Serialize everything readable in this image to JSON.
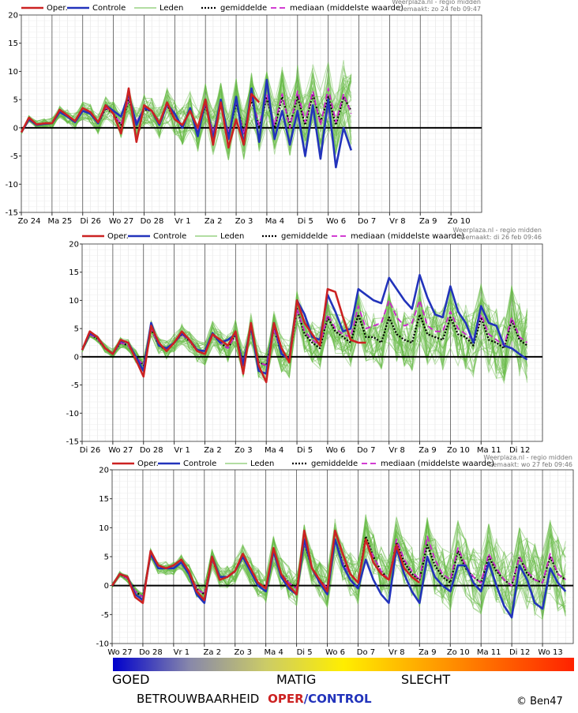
{
  "colors": {
    "oper": "#cc2222",
    "control": "#2233bb",
    "members": "#66bb44",
    "mean": "#000000",
    "median": "#cc22cc",
    "zero": "#000000"
  },
  "legend": {
    "oper": "Oper.",
    "control": "Controle",
    "members": "Leden",
    "mean": "gemiddelde",
    "median": "mediaan (middelste waarde)"
  },
  "chart_data": [
    {
      "type": "line",
      "credit_line1": "Weerplaza.nl - regio midden",
      "credit_line2": "Gemaakt: zo 24 feb 09:47",
      "ylim": [
        -15,
        20
      ],
      "yticks": [
        -15,
        -10,
        -5,
        0,
        5,
        10,
        15,
        20
      ],
      "x_start_day": 0,
      "day_labels": [
        "Zo 24",
        "Ma 25",
        "Di 26",
        "Wo 27",
        "Do 28",
        "Vr 1",
        "Za 2",
        "Zo 3",
        "Ma 4",
        "Di 5",
        "Wo 6",
        "Do 7",
        "Vr 8",
        "Za 9",
        "Zo 10"
      ],
      "grid": true,
      "series": [
        {
          "key": "oper",
          "values": [
            -0.8,
            1.8,
            0.6,
            0.8,
            0.8,
            3.2,
            2.2,
            1.2,
            3.5,
            2.8,
            1.0,
            4.0,
            2.5,
            -1.0,
            7.0,
            -2.5,
            4.0,
            3.0,
            0.8,
            4.5,
            1.5,
            0.5,
            3.0,
            0.0,
            5.0,
            -3.0,
            4.5,
            -3.5,
            1.5,
            -3.0,
            6.0,
            4.5
          ]
        },
        {
          "key": "control",
          "values": [
            -0.8,
            1.5,
            0.5,
            0.7,
            0.8,
            2.8,
            2.0,
            1.0,
            3.0,
            2.5,
            0.8,
            4.0,
            3.0,
            2.0,
            6.0,
            0.5,
            3.5,
            3.0,
            0.5,
            4.2,
            2.5,
            0.0,
            3.5,
            -1.5,
            5.0,
            -2.0,
            5.0,
            -2.0,
            5.5,
            -3.0,
            7.0,
            -2.5,
            8.5,
            -2.0,
            3.0,
            -3.0,
            3.0,
            -5.0,
            4.0,
            -5.5,
            5.0,
            -7.0,
            0.0,
            -4.0
          ]
        },
        {
          "key": "mean",
          "values": [
            -0.8,
            1.6,
            0.6,
            0.8,
            0.8,
            2.8,
            2.0,
            1.2,
            3.0,
            2.6,
            0.8,
            3.5,
            2.5,
            0.5,
            5.0,
            1.0,
            3.2,
            3.0,
            1.0,
            4.0,
            1.5,
            0.5,
            3.0,
            -0.5,
            4.0,
            -1.0,
            4.0,
            -1.5,
            4.5,
            -1.0,
            5.0,
            0.0,
            5.5,
            0.0,
            5.5,
            0.5,
            5.5,
            0.5,
            6.0,
            1.0,
            5.5,
            0.5,
            5.5,
            3.0
          ]
        },
        {
          "key": "median",
          "values": [
            -0.8,
            1.6,
            0.6,
            0.8,
            0.8,
            2.9,
            2.0,
            1.2,
            3.0,
            2.6,
            0.8,
            3.6,
            2.6,
            0.6,
            5.2,
            1.0,
            3.3,
            3.0,
            1.0,
            4.1,
            1.6,
            0.5,
            3.0,
            -0.4,
            4.2,
            -0.8,
            4.2,
            -1.0,
            4.8,
            -1.2,
            5.5,
            0.5,
            5.8,
            0.5,
            6.0,
            0.0,
            6.5,
            1.0,
            6.5,
            0.5,
            7.0,
            1.0,
            6.0,
            2.5
          ]
        }
      ]
    },
    {
      "type": "line",
      "credit_line1": "Weerplaza.nl - regio midden",
      "credit_line2": "Gemaakt: di 26 feb 09:46",
      "ylim": [
        -15,
        20
      ],
      "yticks": [
        -15,
        -10,
        -5,
        0,
        5,
        10,
        15,
        20
      ],
      "x_start_day": 2,
      "day_labels": [
        "Di 26",
        "Wo 27",
        "Do 28",
        "Vr 1",
        "Za 2",
        "Zo 3",
        "Ma 4",
        "Di 5",
        "Wo 6",
        "Do 7",
        "Vr 8",
        "Za 9",
        "Zo 10",
        "Ma 11",
        "Di 12"
      ],
      "grid": true,
      "series": [
        {
          "key": "oper",
          "values": [
            1.2,
            4.5,
            3.5,
            1.5,
            0.5,
            3.0,
            2.5,
            -0.5,
            -3.5,
            5.5,
            2.5,
            1.0,
            2.5,
            4.5,
            3.0,
            1.0,
            0.5,
            4.0,
            3.0,
            2.0,
            4.5,
            -3.0,
            6.0,
            -1.5,
            -4.5,
            6.0,
            1.5,
            -1.0,
            10.0,
            6.0,
            4.0,
            2.0,
            12.0,
            11.5,
            7.0,
            3.0,
            2.5,
            2.5
          ]
        },
        {
          "key": "control",
          "values": [
            1.2,
            4.2,
            3.5,
            1.5,
            0.5,
            2.8,
            2.5,
            0.0,
            -2.5,
            6.0,
            2.0,
            1.5,
            2.5,
            4.2,
            3.0,
            1.2,
            1.0,
            4.2,
            2.5,
            3.0,
            4.0,
            -1.5,
            5.5,
            -2.5,
            -3.0,
            6.0,
            0.5,
            -0.5,
            10.0,
            7.5,
            3.5,
            3.0,
            11.0,
            8.0,
            4.5,
            5.0,
            12.0,
            11.0,
            10.0,
            9.5,
            14.0,
            12.0,
            10.0,
            8.5,
            14.5,
            10.5,
            7.5,
            7.0,
            12.5,
            8.0,
            6.0,
            2.5,
            9.0,
            6.0,
            5.5,
            2.0,
            1.5,
            0.5,
            -0.5
          ]
        },
        {
          "key": "mean",
          "values": [
            1.2,
            4.0,
            3.2,
            1.5,
            0.5,
            2.5,
            2.0,
            0.0,
            -1.5,
            5.0,
            2.0,
            1.2,
            2.5,
            4.0,
            2.8,
            1.0,
            0.5,
            4.0,
            2.5,
            1.5,
            4.0,
            -1.0,
            5.0,
            -1.0,
            -1.5,
            5.0,
            0.5,
            -0.5,
            8.5,
            4.0,
            2.5,
            1.5,
            7.0,
            4.5,
            3.5,
            2.5,
            7.5,
            3.5,
            3.5,
            2.5,
            7.0,
            4.0,
            3.0,
            2.5,
            7.5,
            4.0,
            3.5,
            3.0,
            7.0,
            4.0,
            3.5,
            2.0,
            7.0,
            3.0,
            2.5,
            1.5,
            6.5,
            3.0,
            2.0
          ]
        },
        {
          "key": "median",
          "values": [
            1.2,
            4.0,
            3.2,
            1.5,
            0.5,
            2.5,
            2.0,
            0.0,
            -1.5,
            5.0,
            2.0,
            1.2,
            2.5,
            4.0,
            2.8,
            1.0,
            0.5,
            4.0,
            2.5,
            1.5,
            4.0,
            -1.0,
            5.0,
            -1.0,
            -1.5,
            5.0,
            0.5,
            -0.5,
            8.5,
            4.5,
            3.0,
            2.0,
            7.5,
            5.0,
            4.0,
            3.5,
            9.0,
            5.0,
            5.5,
            6.0,
            10.0,
            7.0,
            5.5,
            6.0,
            10.0,
            5.5,
            4.5,
            4.5,
            8.0,
            5.0,
            4.0,
            3.0,
            7.5,
            4.0,
            3.0,
            2.0,
            7.0,
            3.5,
            2.5
          ]
        }
      ]
    },
    {
      "type": "line",
      "credit_line1": "Weerplaza.nl - regio midden",
      "credit_line2": "Gemaakt: wo 27 feb 09:46",
      "ylim": [
        -10,
        20
      ],
      "yticks": [
        -10,
        -5,
        0,
        5,
        10,
        15,
        20
      ],
      "x_start_day": 3,
      "day_labels": [
        "Wo 27",
        "Do 28",
        "Vr 1",
        "Za 2",
        "Zo 3",
        "Ma 4",
        "Di 5",
        "Wo 6",
        "Do 7",
        "Vr 8",
        "Za 9",
        "Zo 10",
        "Ma 11",
        "Di 12",
        "Wo 13"
      ],
      "grid": true,
      "series": [
        {
          "key": "oper",
          "values": [
            0.0,
            2.0,
            1.5,
            -2.0,
            -3.0,
            6.0,
            3.5,
            3.0,
            3.5,
            4.5,
            2.5,
            -1.0,
            -2.5,
            5.0,
            1.0,
            1.5,
            2.5,
            5.5,
            3.0,
            0.5,
            -0.5,
            6.5,
            2.0,
            0.0,
            -1.5,
            9.5,
            3.0,
            1.0,
            -1.0,
            9.5,
            5.5,
            2.0,
            0.5,
            8.0,
            4.0,
            2.0,
            1.0,
            7.0,
            3.0,
            1.5,
            0.5
          ]
        },
        {
          "key": "control",
          "values": [
            0.0,
            2.0,
            1.5,
            -1.5,
            -2.5,
            5.5,
            3.0,
            3.0,
            3.0,
            4.0,
            2.0,
            -1.5,
            -3.0,
            5.0,
            1.5,
            1.5,
            2.5,
            5.0,
            2.5,
            0.0,
            -1.0,
            6.0,
            1.5,
            -0.5,
            -1.5,
            8.0,
            3.0,
            0.5,
            -1.5,
            8.0,
            3.5,
            1.0,
            -0.5,
            4.5,
            1.0,
            -1.5,
            -3.0,
            6.5,
            2.0,
            -1.0,
            -3.0,
            5.0,
            1.5,
            0.0,
            -1.0,
            3.5,
            3.5,
            0.5,
            -1.0,
            4.0,
            0.0,
            -3.5,
            -5.5,
            3.5,
            1.0,
            -3.0,
            -4.0,
            3.0,
            0.5,
            -1.0
          ]
        },
        {
          "key": "mean",
          "values": [
            0.0,
            2.0,
            1.2,
            -1.0,
            -2.0,
            5.5,
            3.0,
            3.0,
            3.0,
            4.0,
            2.2,
            -0.5,
            -1.5,
            4.5,
            1.5,
            1.5,
            2.5,
            5.0,
            2.5,
            0.5,
            -0.5,
            6.0,
            2.0,
            0.5,
            -0.5,
            7.5,
            3.0,
            1.0,
            -0.5,
            8.0,
            4.0,
            2.0,
            0.5,
            8.5,
            5.0,
            2.5,
            1.0,
            7.5,
            4.0,
            2.0,
            1.0,
            7.0,
            3.5,
            1.5,
            0.5,
            6.0,
            3.0,
            1.5,
            0.5,
            5.0,
            2.5,
            1.0,
            0.0,
            5.0,
            2.0,
            1.0,
            0.5,
            5.0,
            2.0,
            1.0
          ]
        },
        {
          "key": "median",
          "values": [
            0.0,
            2.0,
            1.2,
            -1.0,
            -2.0,
            5.5,
            3.0,
            3.0,
            3.0,
            4.0,
            2.2,
            -0.5,
            -1.5,
            4.5,
            1.5,
            1.5,
            2.5,
            5.0,
            2.5,
            0.5,
            -0.5,
            6.0,
            2.0,
            0.5,
            -0.5,
            7.5,
            3.0,
            1.0,
            -0.5,
            8.0,
            4.0,
            2.0,
            0.5,
            8.0,
            5.0,
            2.5,
            1.0,
            8.0,
            4.5,
            2.5,
            1.0,
            8.5,
            4.5,
            2.0,
            1.0,
            6.5,
            3.5,
            1.5,
            0.5,
            5.5,
            3.0,
            1.0,
            0.0,
            5.0,
            2.5,
            1.0,
            0.5,
            5.5,
            2.0,
            1.0
          ]
        }
      ]
    }
  ],
  "reliability_bar": {
    "gradient": [
      "#0000cc",
      "#8888aa",
      "#cccc66",
      "#ffee00",
      "#ffaa00",
      "#ff6600",
      "#ff2200"
    ],
    "good": "GOED",
    "fair": "MATIG",
    "bad": "SLECHT",
    "caption": "BETROUWBAARHEID",
    "oper_word": "OPER",
    "slash": "/",
    "control_word": "CONTROL",
    "credit": "© Ben47"
  }
}
